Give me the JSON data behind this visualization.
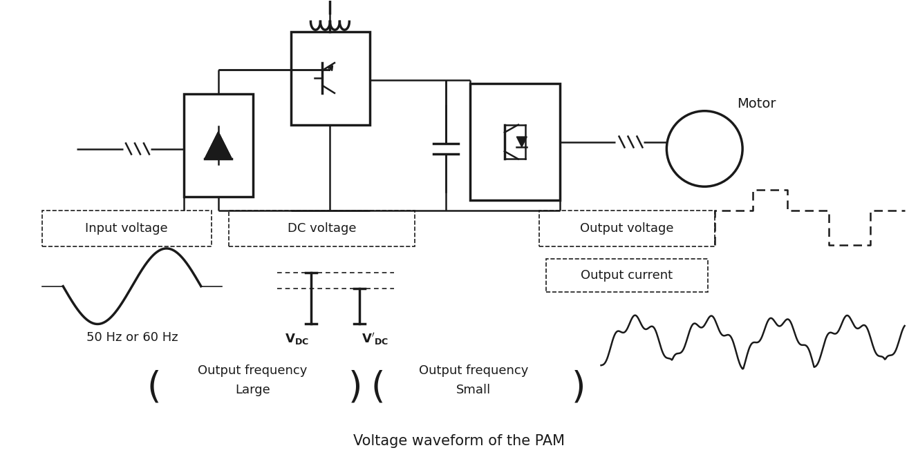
{
  "title": "Voltage waveform of the PAM",
  "title_fontsize": 15,
  "background_color": "#ffffff",
  "line_color": "#1a1a1a",
  "labels": {
    "input_voltage": "Input voltage",
    "output_voltage": "Output voltage",
    "dc_voltage": "DC voltage",
    "output_current": "Output current",
    "freq_50_60": "50 Hz or 60 Hz",
    "motor": "Motor",
    "output_freq_large1": "Output frequency",
    "output_freq_large2": "Large",
    "output_freq_small1": "Output frequency",
    "output_freq_small2": "Small"
  }
}
